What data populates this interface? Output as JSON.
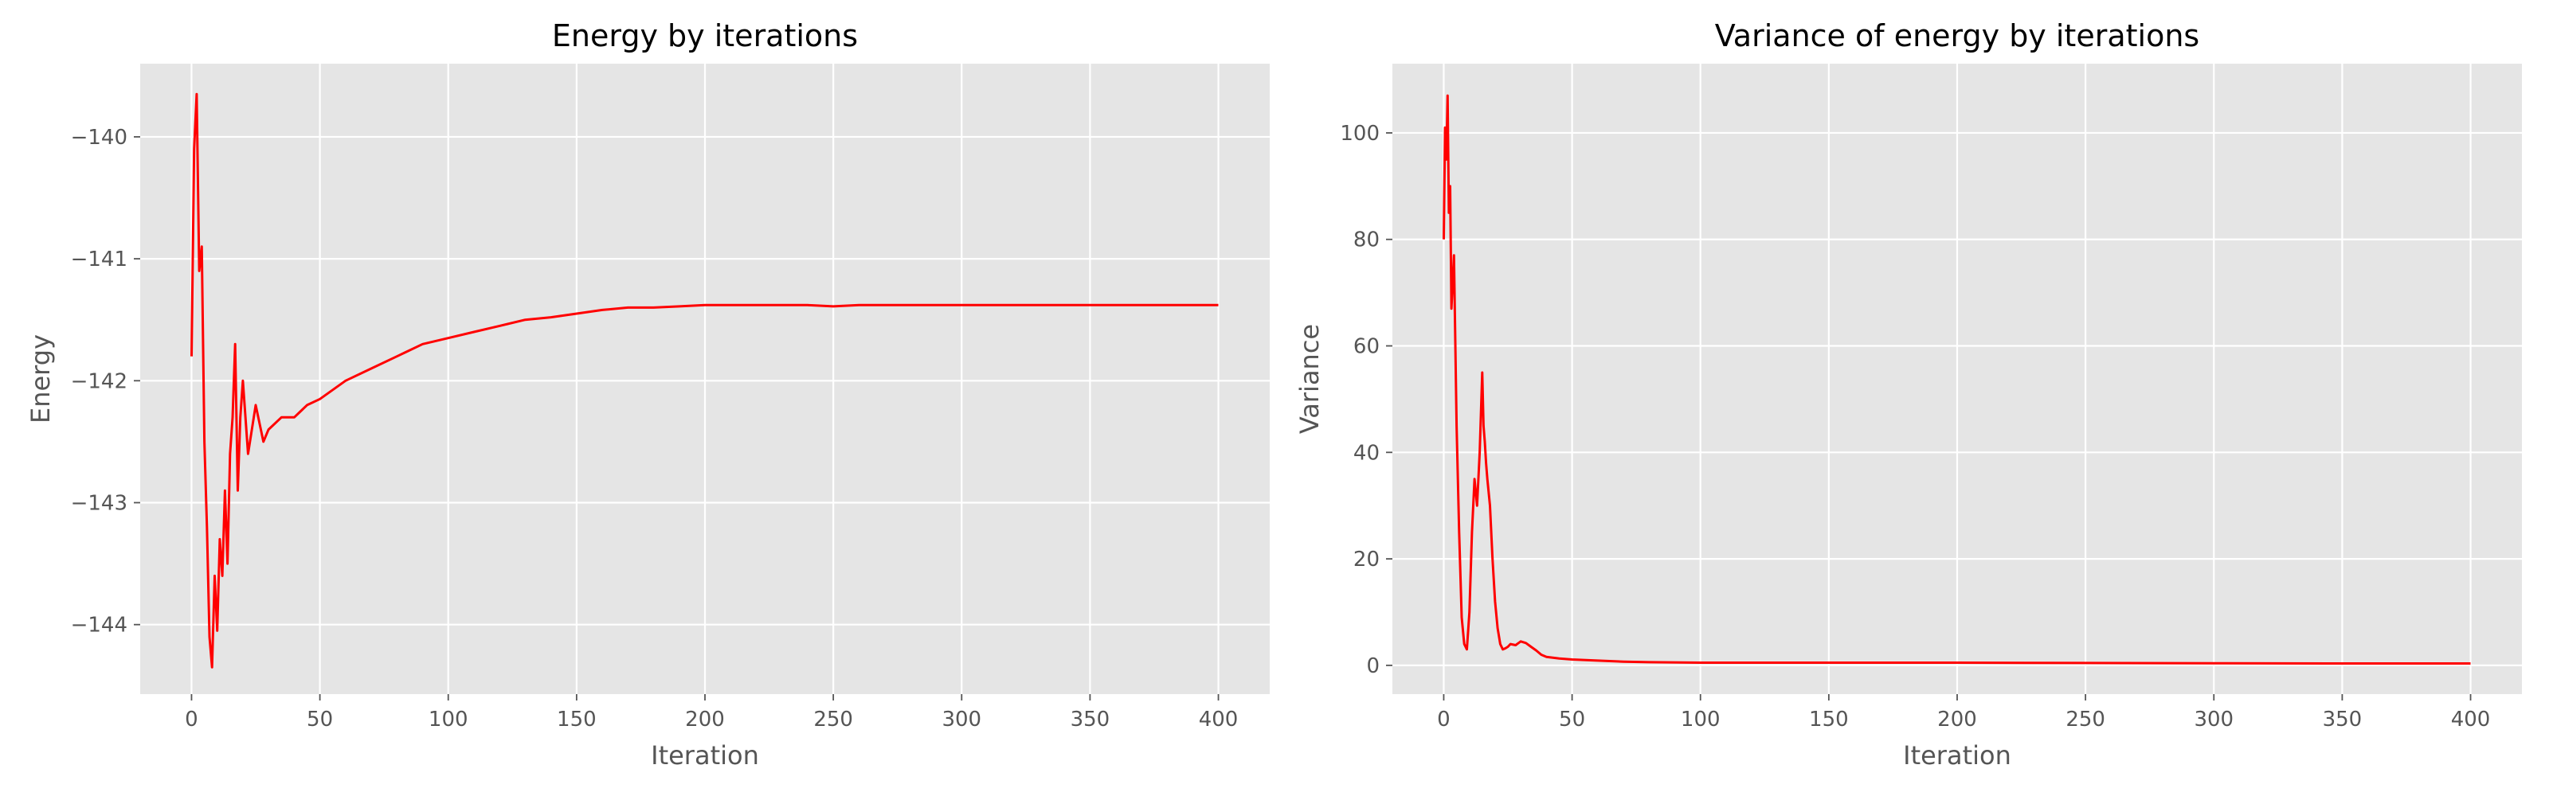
{
  "chart_data": [
    {
      "type": "line",
      "title": "Energy by iterations",
      "xlabel": "Iteration",
      "ylabel": "Energy",
      "xlim": [
        -20,
        420
      ],
      "ylim": [
        -144.57,
        -139.4
      ],
      "grid": true,
      "xticks": [
        0,
        50,
        100,
        150,
        200,
        250,
        300,
        350,
        400
      ],
      "yticks": [
        -144,
        -143,
        -142,
        -141,
        -140
      ],
      "series": [
        {
          "color": "#ff0000",
          "x": [
            0,
            1,
            2,
            3,
            4,
            5,
            6,
            7,
            8,
            9,
            10,
            11,
            12,
            13,
            14,
            15,
            16,
            17,
            18,
            19,
            20,
            22,
            25,
            28,
            30,
            35,
            40,
            45,
            50,
            60,
            70,
            80,
            90,
            100,
            110,
            120,
            130,
            140,
            150,
            160,
            170,
            180,
            190,
            200,
            210,
            220,
            230,
            240,
            250,
            260,
            270,
            280,
            290,
            300,
            310,
            320,
            330,
            340,
            350,
            360,
            370,
            380,
            390,
            400
          ],
          "y": [
            -141.8,
            -140.1,
            -139.65,
            -141.1,
            -140.9,
            -142.5,
            -143.2,
            -144.1,
            -144.35,
            -143.6,
            -144.05,
            -143.3,
            -143.6,
            -142.9,
            -143.5,
            -142.6,
            -142.3,
            -141.7,
            -142.9,
            -142.3,
            -142.0,
            -142.6,
            -142.2,
            -142.5,
            -142.4,
            -142.3,
            -142.3,
            -142.2,
            -142.15,
            -142.0,
            -141.9,
            -141.8,
            -141.7,
            -141.65,
            -141.6,
            -141.55,
            -141.5,
            -141.48,
            -141.45,
            -141.42,
            -141.4,
            -141.4,
            -141.39,
            -141.38,
            -141.38,
            -141.38,
            -141.38,
            -141.38,
            -141.39,
            -141.38,
            -141.38,
            -141.38,
            -141.38,
            -141.38,
            -141.38,
            -141.38,
            -141.38,
            -141.38,
            -141.38,
            -141.38,
            -141.38,
            -141.38,
            -141.38,
            -141.38
          ]
        }
      ]
    },
    {
      "type": "line",
      "title": "Variance of energy by iterations",
      "xlabel": "Iteration",
      "ylabel": "Variance",
      "xlim": [
        -20,
        420
      ],
      "ylim": [
        -5.4,
        113
      ],
      "grid": true,
      "xticks": [
        0,
        50,
        100,
        150,
        200,
        250,
        300,
        350,
        400
      ],
      "yticks": [
        0,
        20,
        40,
        60,
        80,
        100
      ],
      "series": [
        {
          "color": "#ff0000",
          "x": [
            0,
            0.5,
            1,
            1.5,
            2,
            2.5,
            3,
            4,
            5,
            6,
            7,
            8,
            9,
            10,
            11,
            12,
            13,
            14,
            15,
            15.5,
            16,
            16.5,
            17,
            18,
            19,
            20,
            21,
            22,
            23,
            24,
            25,
            26,
            28,
            30,
            32,
            34,
            36,
            38,
            40,
            45,
            50,
            60,
            70,
            80,
            100,
            150,
            200,
            250,
            300,
            350,
            400
          ],
          "y": [
            80,
            101,
            95,
            107,
            85,
            90,
            67,
            77,
            45,
            25,
            9,
            4,
            3,
            10,
            25,
            35,
            30,
            40,
            55,
            45,
            42,
            38,
            35,
            30,
            20,
            12,
            7,
            4,
            3,
            3.2,
            3.5,
            4,
            3.8,
            4.5,
            4.2,
            3.5,
            2.8,
            2,
            1.6,
            1.3,
            1.1,
            0.9,
            0.7,
            0.6,
            0.5,
            0.5,
            0.5,
            0.45,
            0.4,
            0.35,
            0.35
          ]
        }
      ]
    }
  ]
}
